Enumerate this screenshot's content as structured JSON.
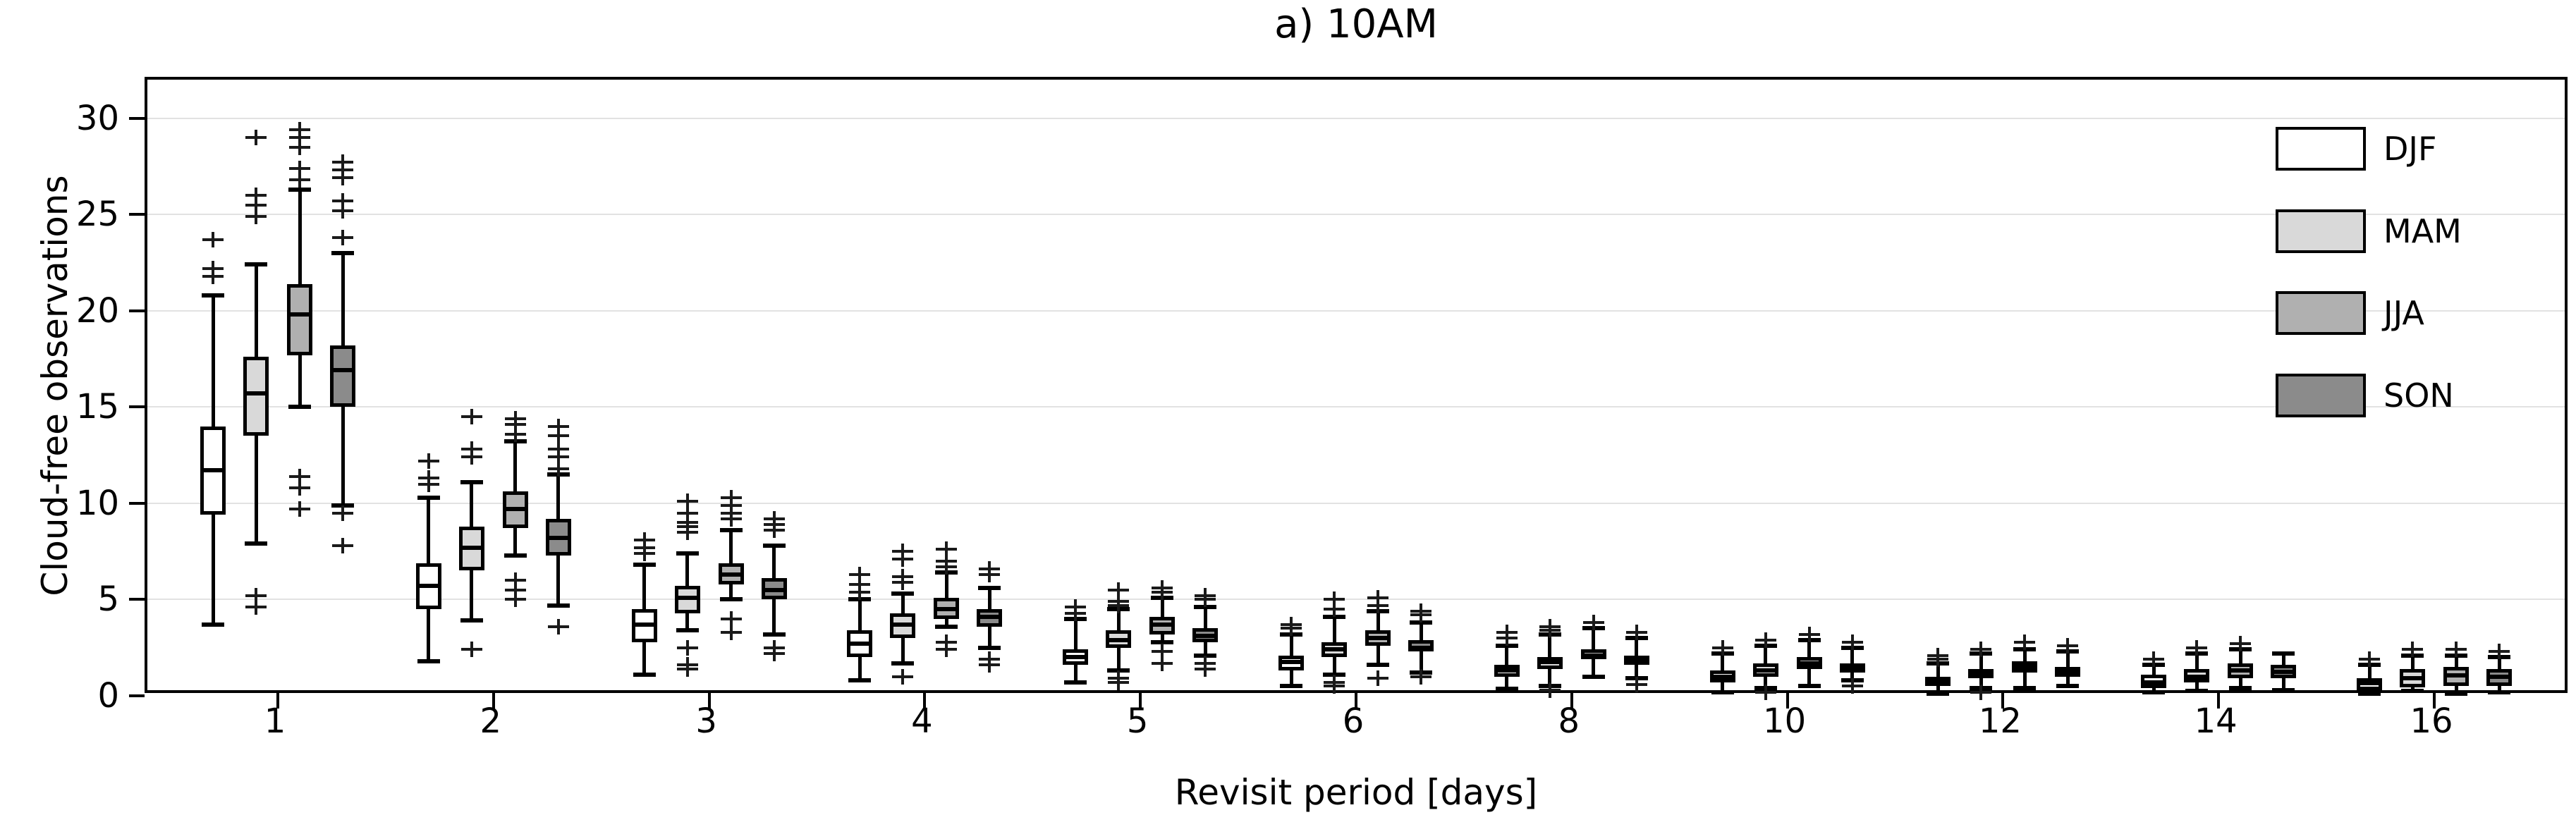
{
  "chart_data": {
    "type": "boxplot",
    "title": "a) 10AM",
    "xlabel": "Revisit period [days]",
    "ylabel": "Cloud-free observations",
    "ylim": [
      0,
      32
    ],
    "yticks": [
      0,
      5,
      10,
      15,
      20,
      25,
      30
    ],
    "gridlines": [
      5,
      10,
      15,
      20,
      25,
      30
    ],
    "grid": "horizontal-only",
    "legend_position": "top-right",
    "categories": [
      "1",
      "2",
      "3",
      "4",
      "5",
      "6",
      "8",
      "10",
      "12",
      "14",
      "16"
    ],
    "series": [
      {
        "name": "DJF",
        "fill": "#ffffff",
        "edge": "#000000",
        "boxes": [
          {
            "whislo": 3.7,
            "q1": 9.4,
            "med": 11.7,
            "q3": 14.0,
            "whishi": 20.8,
            "fliers": [
              21.8,
              22.2,
              23.7
            ]
          },
          {
            "whislo": 1.8,
            "q1": 4.5,
            "med": 5.7,
            "q3": 6.9,
            "whishi": 10.3,
            "fliers": [
              11.0,
              11.3,
              12.2
            ]
          },
          {
            "whislo": 1.1,
            "q1": 2.8,
            "med": 3.7,
            "q3": 4.5,
            "whishi": 6.8,
            "fliers": [
              7.4,
              7.7,
              8.1
            ]
          },
          {
            "whislo": 0.8,
            "q1": 2.0,
            "med": 2.7,
            "q3": 3.4,
            "whishi": 5.0,
            "fliers": [
              5.4,
              5.8,
              6.3
            ]
          },
          {
            "whislo": 0.7,
            "q1": 1.6,
            "med": 2.0,
            "q3": 2.4,
            "whishi": 4.0,
            "fliers": [
              4.3,
              4.6
            ]
          },
          {
            "whislo": 0.5,
            "q1": 1.3,
            "med": 1.75,
            "q3": 2.1,
            "whishi": 3.2,
            "fliers": [
              3.5,
              3.7
            ]
          },
          {
            "whislo": 0.35,
            "q1": 1.0,
            "med": 1.3,
            "q3": 1.6,
            "whishi": 2.6,
            "fliers": [
              3.0,
              3.3
            ]
          },
          {
            "whislo": 0.2,
            "q1": 0.7,
            "med": 1.0,
            "q3": 1.3,
            "whishi": 2.2,
            "fliers": [
              2.5
            ]
          },
          {
            "whislo": 0.1,
            "q1": 0.5,
            "med": 0.8,
            "q3": 1.0,
            "whishi": 1.7,
            "fliers": [
              1.9,
              2.1
            ]
          },
          {
            "whislo": 0.2,
            "q1": 0.4,
            "med": 0.7,
            "q3": 1.1,
            "whishi": 1.6,
            "fliers": [
              1.9
            ]
          },
          {
            "whislo": 0.1,
            "q1": 0.3,
            "med": 0.65,
            "q3": 0.9,
            "whishi": 1.6,
            "fliers": [
              1.9
            ]
          }
        ]
      },
      {
        "name": "MAM",
        "fill": "#d9d9d9",
        "edge": "#000000",
        "boxes": [
          {
            "whislo": 7.9,
            "q1": 13.5,
            "med": 15.7,
            "q3": 17.6,
            "whishi": 22.4,
            "fliers": [
              24.9,
              25.5,
              26.0,
              29.0,
              5.2,
              4.6
            ]
          },
          {
            "whislo": 3.9,
            "q1": 6.5,
            "med": 7.7,
            "q3": 8.8,
            "whishi": 11.1,
            "fliers": [
              12.4,
              12.8,
              14.5,
              2.4
            ]
          },
          {
            "whislo": 3.4,
            "q1": 4.3,
            "med": 5.1,
            "q3": 5.7,
            "whishi": 7.4,
            "fliers": [
              8.5,
              8.8,
              9.0,
              9.5,
              10.1,
              2.5,
              1.6,
              1.4
            ]
          },
          {
            "whislo": 1.7,
            "q1": 3.0,
            "med": 3.7,
            "q3": 4.3,
            "whishi": 5.3,
            "fliers": [
              5.9,
              6.2,
              7.1,
              7.5,
              1.0
            ]
          },
          {
            "whislo": 1.3,
            "q1": 2.5,
            "med": 2.9,
            "q3": 3.4,
            "whishi": 4.5,
            "fliers": [
              4.7,
              4.9,
              5.5,
              0.9,
              0.7
            ]
          },
          {
            "whislo": 1.1,
            "q1": 2.0,
            "med": 2.4,
            "q3": 2.8,
            "whishi": 4.1,
            "fliers": [
              4.5,
              5.0,
              0.7,
              0.5
            ]
          },
          {
            "whislo": 0.5,
            "q1": 1.4,
            "med": 1.75,
            "q3": 2.0,
            "whishi": 3.2,
            "fliers": [
              3.4,
              3.6,
              0.3
            ]
          },
          {
            "whislo": 0.4,
            "q1": 1.0,
            "med": 1.3,
            "q3": 1.7,
            "whishi": 2.6,
            "fliers": [
              2.9,
              0.2
            ]
          },
          {
            "whislo": 0.4,
            "q1": 0.9,
            "med": 1.1,
            "q3": 1.4,
            "whishi": 2.2,
            "fliers": [
              2.4,
              0.2
            ]
          },
          {
            "whislo": 0.25,
            "q1": 0.7,
            "med": 1.0,
            "q3": 1.4,
            "whishi": 2.2,
            "fliers": [
              2.5
            ]
          },
          {
            "whislo": 0.25,
            "q1": 0.45,
            "med": 0.9,
            "q3": 1.4,
            "whishi": 2.1,
            "fliers": [
              2.4
            ]
          }
        ]
      },
      {
        "name": "JJA",
        "fill": "#b0b0b0",
        "edge": "#000000",
        "boxes": [
          {
            "whislo": 15.0,
            "q1": 17.7,
            "med": 19.8,
            "q3": 21.4,
            "whishi": 26.3,
            "fliers": [
              26.8,
              27.4,
              28.5,
              29.0,
              29.4,
              11.4,
              10.8,
              9.7
            ]
          },
          {
            "whislo": 7.3,
            "q1": 8.7,
            "med": 9.7,
            "q3": 10.6,
            "whishi": 13.2,
            "fliers": [
              13.6,
              14.1,
              14.4,
              6.0,
              5.5,
              5.0
            ]
          },
          {
            "whislo": 5.0,
            "q1": 5.8,
            "med": 6.3,
            "q3": 6.9,
            "whishi": 8.6,
            "fliers": [
              9.2,
              9.5,
              9.9,
              10.3,
              4.0,
              3.3
            ]
          },
          {
            "whislo": 3.6,
            "q1": 4.0,
            "med": 4.5,
            "q3": 5.1,
            "whishi": 6.4,
            "fliers": [
              6.7,
              7.0,
              7.6,
              2.8,
              2.4
            ]
          },
          {
            "whislo": 2.8,
            "q1": 3.2,
            "med": 3.7,
            "q3": 4.1,
            "whishi": 5.1,
            "fliers": [
              5.4,
              5.6,
              2.3,
              1.7
            ]
          },
          {
            "whislo": 1.6,
            "q1": 2.6,
            "med": 3.0,
            "q3": 3.4,
            "whishi": 4.4,
            "fliers": [
              4.7,
              5.1,
              0.9
            ]
          },
          {
            "whislo": 1.0,
            "q1": 1.9,
            "med": 2.1,
            "q3": 2.4,
            "whishi": 3.5,
            "fliers": [
              3.8
            ]
          },
          {
            "whislo": 0.5,
            "q1": 1.4,
            "med": 1.7,
            "q3": 2.0,
            "whishi": 2.9,
            "fliers": [
              3.2
            ]
          },
          {
            "whislo": 0.4,
            "q1": 1.2,
            "med": 1.5,
            "q3": 1.8,
            "whishi": 2.4,
            "fliers": [
              2.8
            ]
          },
          {
            "whislo": 0.4,
            "q1": 0.9,
            "med": 1.3,
            "q3": 1.7,
            "whishi": 2.4,
            "fliers": [
              2.7
            ]
          },
          {
            "whislo": 0.1,
            "q1": 0.5,
            "med": 1.05,
            "q3": 1.5,
            "whishi": 2.1,
            "fliers": [
              2.4
            ]
          }
        ]
      },
      {
        "name": "SON",
        "fill": "#8b8b8b",
        "edge": "#000000",
        "boxes": [
          {
            "whislo": 9.9,
            "q1": 15.0,
            "med": 16.9,
            "q3": 18.2,
            "whishi": 23.0,
            "fliers": [
              23.8,
              25.2,
              25.7,
              26.9,
              27.3,
              27.7,
              9.5,
              7.8
            ]
          },
          {
            "whislo": 4.7,
            "q1": 7.3,
            "med": 8.2,
            "q3": 9.2,
            "whishi": 11.5,
            "fliers": [
              11.8,
              12.4,
              12.8,
              13.5,
              14.0,
              3.6
            ]
          },
          {
            "whislo": 3.2,
            "q1": 5.0,
            "med": 5.5,
            "q3": 6.1,
            "whishi": 7.8,
            "fliers": [
              8.6,
              8.9,
              9.2,
              2.5,
              2.2
            ]
          },
          {
            "whislo": 2.5,
            "q1": 3.6,
            "med": 4.1,
            "q3": 4.5,
            "whishi": 5.6,
            "fliers": [
              6.3,
              6.6,
              1.9,
              1.6
            ]
          },
          {
            "whislo": 2.1,
            "q1": 2.8,
            "med": 3.1,
            "q3": 3.5,
            "whishi": 4.6,
            "fliers": [
              5.0,
              5.2,
              1.7,
              1.4
            ]
          },
          {
            "whislo": 1.2,
            "q1": 2.3,
            "med": 2.5,
            "q3": 2.9,
            "whishi": 3.8,
            "fliers": [
              4.2,
              4.4,
              1.0
            ]
          },
          {
            "whislo": 0.9,
            "q1": 1.6,
            "med": 1.8,
            "q3": 2.1,
            "whishi": 3.0,
            "fliers": [
              3.3,
              0.6
            ]
          },
          {
            "whislo": 0.8,
            "q1": 1.2,
            "med": 1.4,
            "q3": 1.7,
            "whishi": 2.5,
            "fliers": [
              2.8,
              0.5
            ]
          },
          {
            "whislo": 0.5,
            "q1": 1.0,
            "med": 1.2,
            "q3": 1.5,
            "whishi": 2.3,
            "fliers": [
              2.6
            ]
          },
          {
            "whislo": 0.3,
            "q1": 0.9,
            "med": 1.25,
            "q3": 1.6,
            "whishi": 2.2,
            "fliers": []
          },
          {
            "whislo": 0.2,
            "q1": 0.5,
            "med": 1.0,
            "q3": 1.4,
            "whishi": 2.0,
            "fliers": [
              2.3
            ]
          }
        ]
      }
    ]
  }
}
